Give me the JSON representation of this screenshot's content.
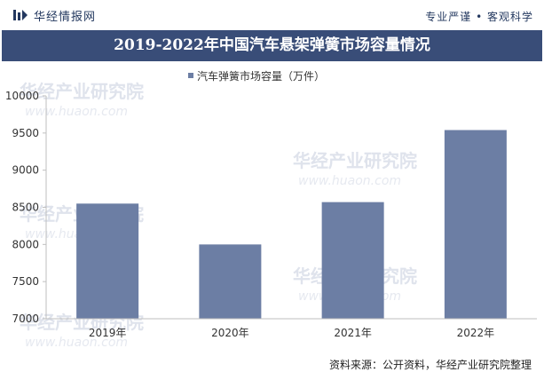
{
  "header": {
    "logo_text": "华经情报网",
    "tagline": "专业严谨 • 客观科学"
  },
  "watermark": {
    "text": "华经产业研究院",
    "url": "www.huaon.com"
  },
  "chart_data": {
    "type": "bar",
    "title": "2019-2022年中国汽车悬架弹簧市场容量情况",
    "categories": [
      "2019年",
      "2020年",
      "2021年",
      "2022年"
    ],
    "series": [
      {
        "name": "汽车弹簧市场容量（万件）",
        "values": [
          8550,
          8000,
          8570,
          9540
        ],
        "color": "#6c7ea4"
      }
    ],
    "y_ticks": [
      7000,
      7500,
      8000,
      8500,
      9000,
      9500,
      10000
    ],
    "ylim": [
      7000,
      10000
    ],
    "legend_position": "top",
    "grid": false
  },
  "footer": {
    "source": "资料来源：公开资料，华经产业研究院整理"
  }
}
